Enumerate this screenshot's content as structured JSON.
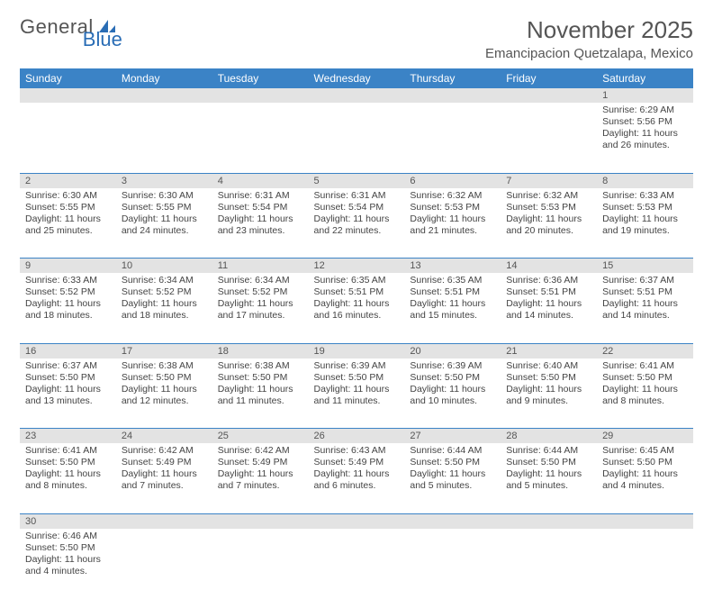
{
  "logo": {
    "text1": "General",
    "text2": "Blue"
  },
  "header": {
    "month_title": "November 2025",
    "location": "Emancipacion Quetzalapa, Mexico"
  },
  "colors": {
    "header_bg": "#3b83c6",
    "header_text": "#ffffff",
    "daynum_bg": "#e3e3e3",
    "cell_border": "#3b83c6",
    "text": "#444444",
    "logo_general": "#555555",
    "logo_blue": "#2a6db5"
  },
  "days_of_week": [
    "Sunday",
    "Monday",
    "Tuesday",
    "Wednesday",
    "Thursday",
    "Friday",
    "Saturday"
  ],
  "weeks": [
    [
      null,
      null,
      null,
      null,
      null,
      null,
      {
        "n": "1",
        "sr": "Sunrise: 6:29 AM",
        "ss": "Sunset: 5:56 PM",
        "dl": "Daylight: 11 hours and 26 minutes."
      }
    ],
    [
      {
        "n": "2",
        "sr": "Sunrise: 6:30 AM",
        "ss": "Sunset: 5:55 PM",
        "dl": "Daylight: 11 hours and 25 minutes."
      },
      {
        "n": "3",
        "sr": "Sunrise: 6:30 AM",
        "ss": "Sunset: 5:55 PM",
        "dl": "Daylight: 11 hours and 24 minutes."
      },
      {
        "n": "4",
        "sr": "Sunrise: 6:31 AM",
        "ss": "Sunset: 5:54 PM",
        "dl": "Daylight: 11 hours and 23 minutes."
      },
      {
        "n": "5",
        "sr": "Sunrise: 6:31 AM",
        "ss": "Sunset: 5:54 PM",
        "dl": "Daylight: 11 hours and 22 minutes."
      },
      {
        "n": "6",
        "sr": "Sunrise: 6:32 AM",
        "ss": "Sunset: 5:53 PM",
        "dl": "Daylight: 11 hours and 21 minutes."
      },
      {
        "n": "7",
        "sr": "Sunrise: 6:32 AM",
        "ss": "Sunset: 5:53 PM",
        "dl": "Daylight: 11 hours and 20 minutes."
      },
      {
        "n": "8",
        "sr": "Sunrise: 6:33 AM",
        "ss": "Sunset: 5:53 PM",
        "dl": "Daylight: 11 hours and 19 minutes."
      }
    ],
    [
      {
        "n": "9",
        "sr": "Sunrise: 6:33 AM",
        "ss": "Sunset: 5:52 PM",
        "dl": "Daylight: 11 hours and 18 minutes."
      },
      {
        "n": "10",
        "sr": "Sunrise: 6:34 AM",
        "ss": "Sunset: 5:52 PM",
        "dl": "Daylight: 11 hours and 18 minutes."
      },
      {
        "n": "11",
        "sr": "Sunrise: 6:34 AM",
        "ss": "Sunset: 5:52 PM",
        "dl": "Daylight: 11 hours and 17 minutes."
      },
      {
        "n": "12",
        "sr": "Sunrise: 6:35 AM",
        "ss": "Sunset: 5:51 PM",
        "dl": "Daylight: 11 hours and 16 minutes."
      },
      {
        "n": "13",
        "sr": "Sunrise: 6:35 AM",
        "ss": "Sunset: 5:51 PM",
        "dl": "Daylight: 11 hours and 15 minutes."
      },
      {
        "n": "14",
        "sr": "Sunrise: 6:36 AM",
        "ss": "Sunset: 5:51 PM",
        "dl": "Daylight: 11 hours and 14 minutes."
      },
      {
        "n": "15",
        "sr": "Sunrise: 6:37 AM",
        "ss": "Sunset: 5:51 PM",
        "dl": "Daylight: 11 hours and 14 minutes."
      }
    ],
    [
      {
        "n": "16",
        "sr": "Sunrise: 6:37 AM",
        "ss": "Sunset: 5:50 PM",
        "dl": "Daylight: 11 hours and 13 minutes."
      },
      {
        "n": "17",
        "sr": "Sunrise: 6:38 AM",
        "ss": "Sunset: 5:50 PM",
        "dl": "Daylight: 11 hours and 12 minutes."
      },
      {
        "n": "18",
        "sr": "Sunrise: 6:38 AM",
        "ss": "Sunset: 5:50 PM",
        "dl": "Daylight: 11 hours and 11 minutes."
      },
      {
        "n": "19",
        "sr": "Sunrise: 6:39 AM",
        "ss": "Sunset: 5:50 PM",
        "dl": "Daylight: 11 hours and 11 minutes."
      },
      {
        "n": "20",
        "sr": "Sunrise: 6:39 AM",
        "ss": "Sunset: 5:50 PM",
        "dl": "Daylight: 11 hours and 10 minutes."
      },
      {
        "n": "21",
        "sr": "Sunrise: 6:40 AM",
        "ss": "Sunset: 5:50 PM",
        "dl": "Daylight: 11 hours and 9 minutes."
      },
      {
        "n": "22",
        "sr": "Sunrise: 6:41 AM",
        "ss": "Sunset: 5:50 PM",
        "dl": "Daylight: 11 hours and 8 minutes."
      }
    ],
    [
      {
        "n": "23",
        "sr": "Sunrise: 6:41 AM",
        "ss": "Sunset: 5:50 PM",
        "dl": "Daylight: 11 hours and 8 minutes."
      },
      {
        "n": "24",
        "sr": "Sunrise: 6:42 AM",
        "ss": "Sunset: 5:49 PM",
        "dl": "Daylight: 11 hours and 7 minutes."
      },
      {
        "n": "25",
        "sr": "Sunrise: 6:42 AM",
        "ss": "Sunset: 5:49 PM",
        "dl": "Daylight: 11 hours and 7 minutes."
      },
      {
        "n": "26",
        "sr": "Sunrise: 6:43 AM",
        "ss": "Sunset: 5:49 PM",
        "dl": "Daylight: 11 hours and 6 minutes."
      },
      {
        "n": "27",
        "sr": "Sunrise: 6:44 AM",
        "ss": "Sunset: 5:50 PM",
        "dl": "Daylight: 11 hours and 5 minutes."
      },
      {
        "n": "28",
        "sr": "Sunrise: 6:44 AM",
        "ss": "Sunset: 5:50 PM",
        "dl": "Daylight: 11 hours and 5 minutes."
      },
      {
        "n": "29",
        "sr": "Sunrise: 6:45 AM",
        "ss": "Sunset: 5:50 PM",
        "dl": "Daylight: 11 hours and 4 minutes."
      }
    ],
    [
      {
        "n": "30",
        "sr": "Sunrise: 6:46 AM",
        "ss": "Sunset: 5:50 PM",
        "dl": "Daylight: 11 hours and 4 minutes."
      },
      null,
      null,
      null,
      null,
      null,
      null
    ]
  ]
}
